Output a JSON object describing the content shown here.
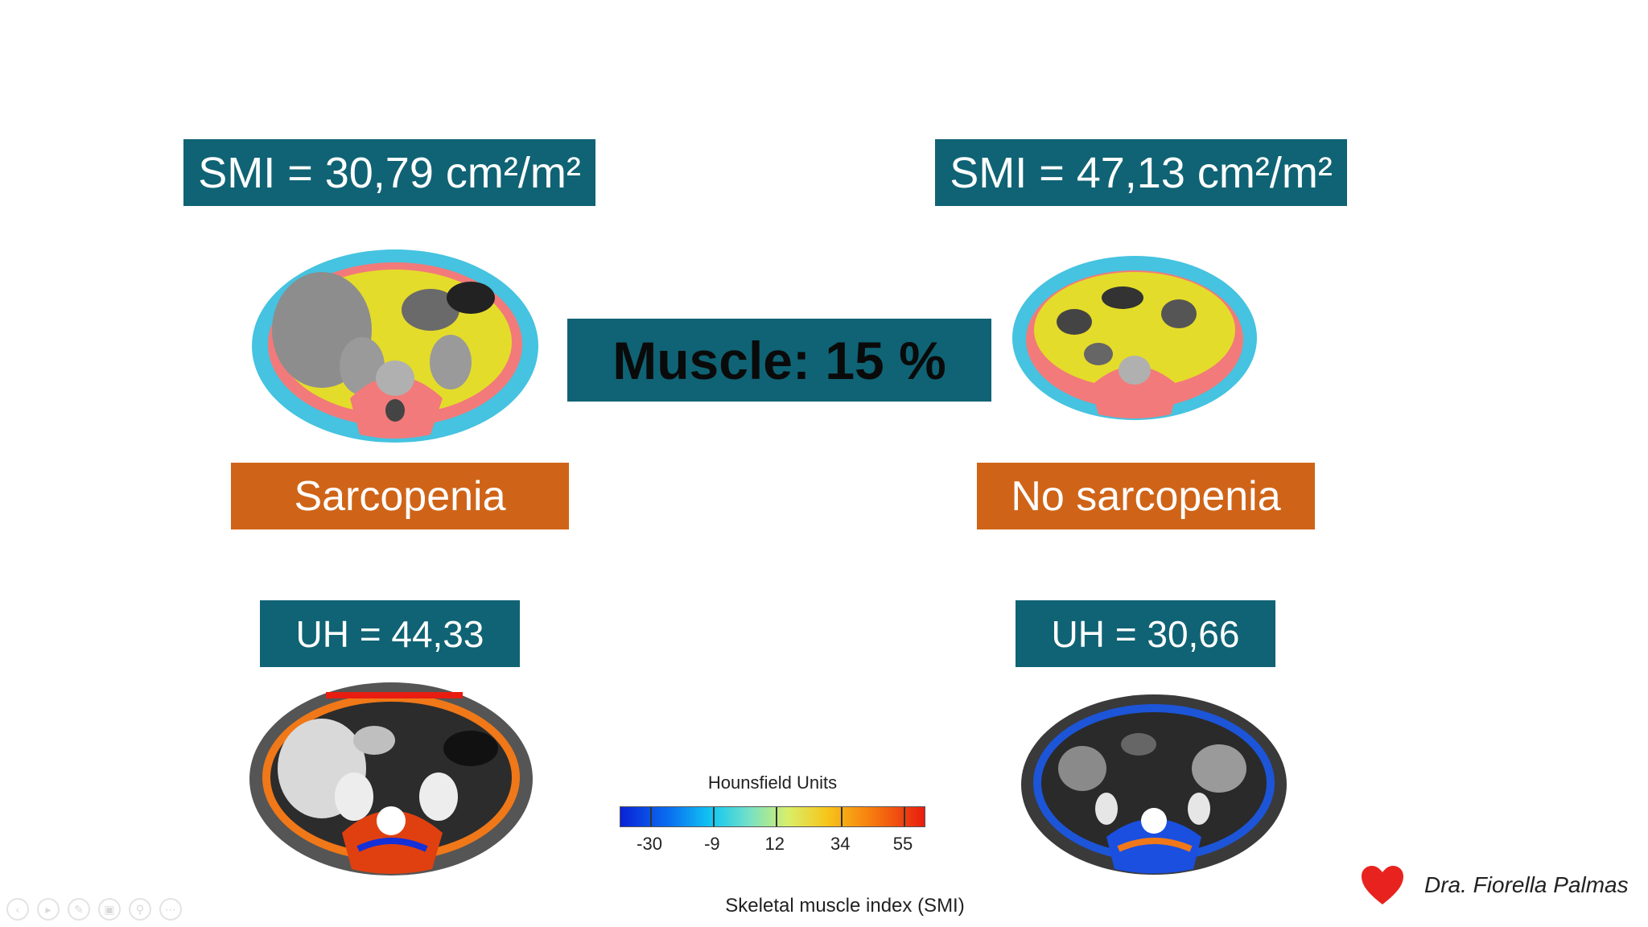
{
  "left": {
    "smi_label": "SMI = 30,79 cm²/m²",
    "status_label": "Sarcopenia",
    "uh_label": "UH = 44,33"
  },
  "right": {
    "smi_label": "SMI = 47,13 cm²/m²",
    "status_label": "No sarcopenia",
    "uh_label": "UH = 30,66"
  },
  "center": {
    "muscle_label": "Muscle: 15 %"
  },
  "legend": {
    "title": "Hounsfield Units",
    "ticks": [
      "-30",
      "-9",
      "12",
      "34",
      "55"
    ],
    "tick_values": [
      -30,
      -9,
      12,
      34,
      55
    ]
  },
  "caption": "Skeletal muscle index (SMI)",
  "author": "Dra. Fiorella Palmas",
  "colors": {
    "teal": "#0f6374",
    "orange": "#cf6418",
    "heart": "#e8231f",
    "fat_yellow": "#e4dc2a",
    "subcutaneous_cyan": "#45c3e0",
    "muscle_pink": "#f27a7a"
  },
  "icons": {
    "author_mark": "heart-icon",
    "controls": [
      "back-icon",
      "play-icon",
      "pen-icon",
      "slides-icon",
      "zoom-icon",
      "more-icon"
    ]
  }
}
